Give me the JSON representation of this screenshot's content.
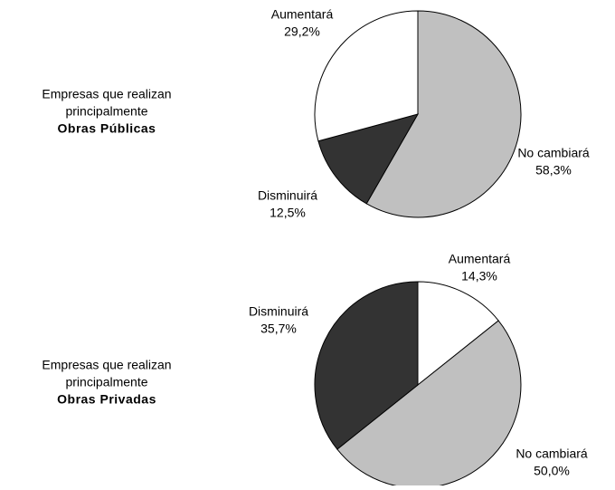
{
  "chart_data": [
    {
      "type": "pie",
      "title_lines": [
        "Empresas que realizan",
        "principalmente"
      ],
      "title_emphasis": "Obras Públicas",
      "categories": [
        "No cambiará",
        "Disminuirá",
        "Aumentará"
      ],
      "values": [
        58.3,
        12.5,
        29.2
      ],
      "value_labels": [
        "58,3%",
        "12,5%",
        "29,2%"
      ],
      "colors": [
        "#c0c0c0",
        "#333333",
        "#ffffff"
      ]
    },
    {
      "type": "pie",
      "title_lines": [
        "Empresas que realizan",
        "principalmente"
      ],
      "title_emphasis": "Obras Privadas",
      "categories": [
        "Aumentará",
        "No cambiará",
        "Disminuirá"
      ],
      "values": [
        14.3,
        50.0,
        35.7
      ],
      "value_labels": [
        "14,3%",
        "50,0%",
        "35,7%"
      ],
      "colors": [
        "#ffffff",
        "#c0c0c0",
        "#333333"
      ]
    }
  ]
}
